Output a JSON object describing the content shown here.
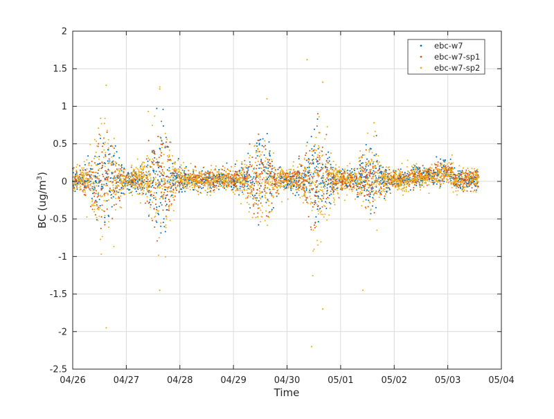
{
  "chart_data": {
    "type": "scatter",
    "xlabel": "Time",
    "ylabel_base": "BC (ug/m",
    "ylabel_sup": "3",
    "ylabel_close": ")",
    "x_ticks": [
      "04/26",
      "04/27",
      "04/28",
      "04/29",
      "04/30",
      "05/01",
      "05/02",
      "05/03",
      "05/04"
    ],
    "xlim": [
      "04/26",
      "05/04"
    ],
    "ylim": [
      -2.5,
      2
    ],
    "y_ticks": [
      "-2.5",
      "-2",
      "-1.5",
      "-1",
      "-0.5",
      "0",
      "0.5",
      "1",
      "1.5",
      "2"
    ],
    "grid": true,
    "legend_position": "top-right",
    "series": [
      {
        "name": "ebc-w7",
        "color": "#0072BD",
        "data_range": [
          "04/26",
          "05/03 ~14:00"
        ],
        "typical_range": [
          -0.2,
          0.2
        ],
        "daytime_spread": [
          {
            "peak": "04/26 ~14:00",
            "approx_range": [
              -0.6,
              0.5
            ]
          },
          {
            "peak": "04/27 ~16:00",
            "approx_range": [
              -0.6,
              0.5
            ]
          },
          {
            "peak": "04/29 ~12:00",
            "approx_range": [
              -0.4,
              0.4
            ]
          },
          {
            "peak": "04/30 ~12:00",
            "approx_range": [
              -0.6,
              0.4
            ]
          },
          {
            "peak": "05/01 ~14:00",
            "approx_range": [
              -0.3,
              0.3
            ]
          }
        ]
      },
      {
        "name": "ebc-w7-sp1",
        "color": "#D95319",
        "data_range": [
          "04/26",
          "05/03 ~14:00"
        ],
        "typical_range": [
          -0.2,
          0.2
        ]
      },
      {
        "name": "ebc-w7-sp2",
        "color": "#EDB120",
        "data_range": [
          "04/26",
          "05/03 ~14:00"
        ],
        "typical_range": [
          -0.25,
          0.3
        ],
        "notable_points": [
          {
            "x": "04/26 ~15:00",
            "y": 1.28
          },
          {
            "x": "04/26 ~15:00",
            "y": -1.95
          },
          {
            "x": "04/27 ~15:00",
            "y": 1.23
          },
          {
            "x": "04/27 ~15:00",
            "y": -1.45
          },
          {
            "x": "04/29 ~15:00",
            "y": 1.1
          },
          {
            "x": "04/30 ~09:00",
            "y": 1.62
          },
          {
            "x": "04/30 ~11:00",
            "y": -2.2
          },
          {
            "x": "04/30 ~16:00",
            "y": 1.32
          },
          {
            "x": "04/30 ~16:00",
            "y": -1.7
          },
          {
            "x": "05/01 ~10:00",
            "y": -1.45
          },
          {
            "x": "05/01 ~15:00",
            "y": 0.78
          }
        ]
      }
    ]
  }
}
